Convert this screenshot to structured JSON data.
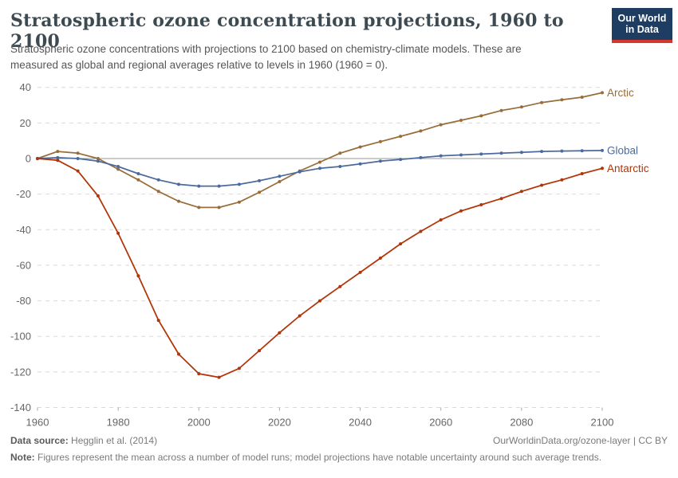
{
  "header": {
    "title": "Stratospheric ozone concentration projections, 1960 to 2100",
    "subtitle": "Stratospheric ozone concentrations with projections to 2100 based on chemistry-climate models. These are measured as global and regional averages relative to levels in 1960 (1960 = 0).",
    "logo": {
      "line1": "Our World",
      "line2": "in Data",
      "bg_color": "#1d3d63",
      "accent_color": "#d7382d"
    }
  },
  "footer": {
    "source_label": "Data source:",
    "source_value": " Hegglin et al. (2014)",
    "link": "OurWorldinData.org/ozone-layer | CC BY",
    "note_label": "Note:",
    "note_value": " Figures represent the mean across a number of model runs; model projections have notable uncertainty around such average trends."
  },
  "chart_data": {
    "type": "line",
    "title": "Stratospheric ozone concentration projections, 1960 to 2100",
    "xlabel": "",
    "ylabel": "",
    "xlim": [
      1960,
      2100
    ],
    "ylim": [
      -140,
      40
    ],
    "xticks": [
      1960,
      1980,
      2000,
      2020,
      2040,
      2060,
      2080,
      2100
    ],
    "yticks": [
      40,
      20,
      0,
      -20,
      -40,
      -60,
      -80,
      -100,
      -120,
      -140
    ],
    "grid": "horizontal-dashed",
    "legend_position": "right-end-labels",
    "x": [
      1960,
      1965,
      1970,
      1975,
      1980,
      1985,
      1990,
      1995,
      2000,
      2005,
      2010,
      2015,
      2020,
      2025,
      2030,
      2035,
      2040,
      2045,
      2050,
      2055,
      2060,
      2065,
      2070,
      2075,
      2080,
      2085,
      2090,
      2095,
      2100
    ],
    "series": [
      {
        "name": "Arctic",
        "color": "#996D39",
        "values": [
          0,
          4,
          3,
          0,
          -6,
          -12,
          -18.5,
          -24,
          -27.5,
          -27.5,
          -24.5,
          -19,
          -13,
          -7,
          -2,
          3,
          6.5,
          9.5,
          12.5,
          15.5,
          19,
          21.5,
          24,
          27,
          29,
          31.5,
          33,
          34.5,
          37
        ]
      },
      {
        "name": "Global",
        "color": "#4C6A9C",
        "values": [
          0,
          0.5,
          0,
          -1.5,
          -4.5,
          -8.5,
          -12,
          -14.5,
          -15.5,
          -15.5,
          -14.5,
          -12.5,
          -10,
          -7.5,
          -5.5,
          -4.5,
          -3,
          -1.5,
          -0.5,
          0.5,
          1.5,
          2,
          2.5,
          3,
          3.5,
          4,
          4.2,
          4.4,
          4.5
        ]
      },
      {
        "name": "Antarctic",
        "color": "#B13507",
        "values": [
          0,
          -1,
          -7,
          -21,
          -42,
          -66,
          -91,
          -110,
          -121,
          -123,
          -118,
          -108,
          -98,
          -88.5,
          -80,
          -72,
          -64,
          -56,
          -48,
          -41,
          -34.5,
          -29.5,
          -26,
          -22.5,
          -18.5,
          -15,
          -12,
          -8.5,
          -5.5
        ]
      }
    ],
    "colors": {
      "grid": "#d9d9d9",
      "zero_line": "#999999",
      "tick_label": "#666666"
    }
  }
}
